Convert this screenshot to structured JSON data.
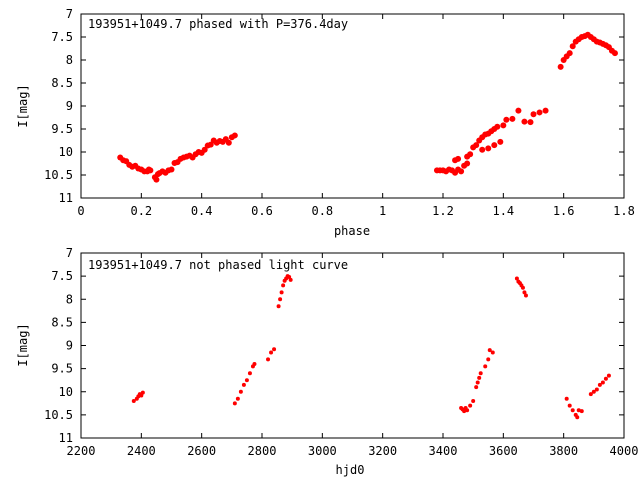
{
  "chart_data": [
    {
      "type": "scatter",
      "title": "193951+1049.7 phased with P=376.4day",
      "xlabel": "phase",
      "ylabel": "I[mag]",
      "xlim": [
        0,
        1.8
      ],
      "ylim": [
        11,
        7
      ],
      "y_inverted": true,
      "xticks": [
        "0",
        "0.2",
        "0.4",
        "0.6",
        "0.8",
        "1",
        "1.2",
        "1.4",
        "1.6",
        "1.8"
      ],
      "yticks": [
        "7",
        "7.5",
        "8",
        "8.5",
        "9",
        "9.5",
        "10",
        "10.5",
        "11"
      ],
      "color": "#ff0000",
      "grid": false,
      "points": [
        [
          0.13,
          10.12
        ],
        [
          0.14,
          10.18
        ],
        [
          0.15,
          10.2
        ],
        [
          0.16,
          10.28
        ],
        [
          0.17,
          10.32
        ],
        [
          0.18,
          10.3
        ],
        [
          0.19,
          10.36
        ],
        [
          0.2,
          10.38
        ],
        [
          0.21,
          10.42
        ],
        [
          0.22,
          10.42
        ],
        [
          0.225,
          10.38
        ],
        [
          0.23,
          10.4
        ],
        [
          0.245,
          10.55
        ],
        [
          0.25,
          10.6
        ],
        [
          0.255,
          10.48
        ],
        [
          0.26,
          10.46
        ],
        [
          0.27,
          10.42
        ],
        [
          0.28,
          10.45
        ],
        [
          0.29,
          10.4
        ],
        [
          0.3,
          10.38
        ],
        [
          0.31,
          10.24
        ],
        [
          0.32,
          10.22
        ],
        [
          0.33,
          10.15
        ],
        [
          0.34,
          10.12
        ],
        [
          0.35,
          10.1
        ],
        [
          0.36,
          10.08
        ],
        [
          0.37,
          10.12
        ],
        [
          0.38,
          10.05
        ],
        [
          0.39,
          10.0
        ],
        [
          0.4,
          10.02
        ],
        [
          0.41,
          9.95
        ],
        [
          0.42,
          9.86
        ],
        [
          0.43,
          9.84
        ],
        [
          0.44,
          9.75
        ],
        [
          0.45,
          9.8
        ],
        [
          0.46,
          9.76
        ],
        [
          0.47,
          9.78
        ],
        [
          0.48,
          9.72
        ],
        [
          0.49,
          9.8
        ],
        [
          0.5,
          9.68
        ],
        [
          0.51,
          9.64
        ],
        [
          1.18,
          10.4
        ],
        [
          1.19,
          10.4
        ],
        [
          1.2,
          10.4
        ],
        [
          1.21,
          10.42
        ],
        [
          1.22,
          10.38
        ],
        [
          1.23,
          10.4
        ],
        [
          1.24,
          10.45
        ],
        [
          1.25,
          10.38
        ],
        [
          1.26,
          10.42
        ],
        [
          1.27,
          10.3
        ],
        [
          1.28,
          10.25
        ],
        [
          1.24,
          10.18
        ],
        [
          1.25,
          10.15
        ],
        [
          1.29,
          10.05
        ],
        [
          1.28,
          10.1
        ],
        [
          1.3,
          9.9
        ],
        [
          1.31,
          9.85
        ],
        [
          1.32,
          9.75
        ],
        [
          1.33,
          9.68
        ],
        [
          1.34,
          9.62
        ],
        [
          1.35,
          9.6
        ],
        [
          1.36,
          9.55
        ],
        [
          1.37,
          9.5
        ],
        [
          1.38,
          9.45
        ],
        [
          1.4,
          9.42
        ],
        [
          1.33,
          9.95
        ],
        [
          1.35,
          9.92
        ],
        [
          1.37,
          9.85
        ],
        [
          1.39,
          9.78
        ],
        [
          1.41,
          9.3
        ],
        [
          1.43,
          9.28
        ],
        [
          1.45,
          9.1
        ],
        [
          1.47,
          9.34
        ],
        [
          1.49,
          9.35
        ],
        [
          1.5,
          9.18
        ],
        [
          1.52,
          9.14
        ],
        [
          1.54,
          9.1
        ],
        [
          1.59,
          8.15
        ],
        [
          1.6,
          8.0
        ],
        [
          1.61,
          7.92
        ],
        [
          1.62,
          7.85
        ],
        [
          1.63,
          7.7
        ],
        [
          1.64,
          7.6
        ],
        [
          1.65,
          7.55
        ],
        [
          1.66,
          7.5
        ],
        [
          1.67,
          7.48
        ],
        [
          1.68,
          7.45
        ],
        [
          1.69,
          7.5
        ],
        [
          1.7,
          7.55
        ],
        [
          1.71,
          7.6
        ],
        [
          1.72,
          7.62
        ],
        [
          1.73,
          7.65
        ],
        [
          1.74,
          7.68
        ],
        [
          1.75,
          7.72
        ],
        [
          1.76,
          7.8
        ],
        [
          1.77,
          7.85
        ]
      ]
    },
    {
      "type": "scatter",
      "title": "193951+1049.7 not phased light curve",
      "xlabel": "hjd0",
      "ylabel": "I[mag]",
      "xlim": [
        2200,
        4000
      ],
      "ylim": [
        11,
        7
      ],
      "y_inverted": true,
      "xticks": [
        "2200",
        "2400",
        "2600",
        "2800",
        "3000",
        "3200",
        "3400",
        "3600",
        "3800",
        "4000"
      ],
      "yticks": [
        "7",
        "7.5",
        "8",
        "8.5",
        "9",
        "9.5",
        "10",
        "10.5",
        "11"
      ],
      "color": "#ff0000",
      "grid": false,
      "points": [
        [
          2375,
          10.2
        ],
        [
          2385,
          10.15
        ],
        [
          2390,
          10.1
        ],
        [
          2395,
          10.05
        ],
        [
          2400,
          10.08
        ],
        [
          2405,
          10.02
        ],
        [
          2710,
          10.25
        ],
        [
          2720,
          10.15
        ],
        [
          2730,
          10.0
        ],
        [
          2740,
          9.85
        ],
        [
          2750,
          9.75
        ],
        [
          2760,
          9.6
        ],
        [
          2770,
          9.45
        ],
        [
          2775,
          9.4
        ],
        [
          2820,
          9.3
        ],
        [
          2830,
          9.15
        ],
        [
          2840,
          9.08
        ],
        [
          2855,
          8.15
        ],
        [
          2860,
          8.0
        ],
        [
          2865,
          7.85
        ],
        [
          2870,
          7.7
        ],
        [
          2875,
          7.6
        ],
        [
          2880,
          7.55
        ],
        [
          2885,
          7.5
        ],
        [
          2890,
          7.52
        ],
        [
          2895,
          7.58
        ],
        [
          3460,
          10.35
        ],
        [
          3465,
          10.38
        ],
        [
          3470,
          10.42
        ],
        [
          3475,
          10.35
        ],
        [
          3480,
          10.4
        ],
        [
          3490,
          10.3
        ],
        [
          3500,
          10.2
        ],
        [
          3510,
          9.9
        ],
        [
          3515,
          9.8
        ],
        [
          3520,
          9.7
        ],
        [
          3525,
          9.6
        ],
        [
          3540,
          9.45
        ],
        [
          3550,
          9.3
        ],
        [
          3555,
          9.1
        ],
        [
          3565,
          9.15
        ],
        [
          3645,
          7.55
        ],
        [
          3650,
          7.62
        ],
        [
          3655,
          7.65
        ],
        [
          3660,
          7.7
        ],
        [
          3665,
          7.75
        ],
        [
          3670,
          7.85
        ],
        [
          3675,
          7.92
        ],
        [
          3810,
          10.15
        ],
        [
          3820,
          10.3
        ],
        [
          3830,
          10.4
        ],
        [
          3840,
          10.5
        ],
        [
          3845,
          10.55
        ],
        [
          3850,
          10.4
        ],
        [
          3860,
          10.42
        ],
        [
          3890,
          10.05
        ],
        [
          3900,
          10.0
        ],
        [
          3910,
          9.95
        ],
        [
          3920,
          9.85
        ],
        [
          3930,
          9.8
        ],
        [
          3940,
          9.72
        ],
        [
          3950,
          9.65
        ]
      ]
    }
  ]
}
